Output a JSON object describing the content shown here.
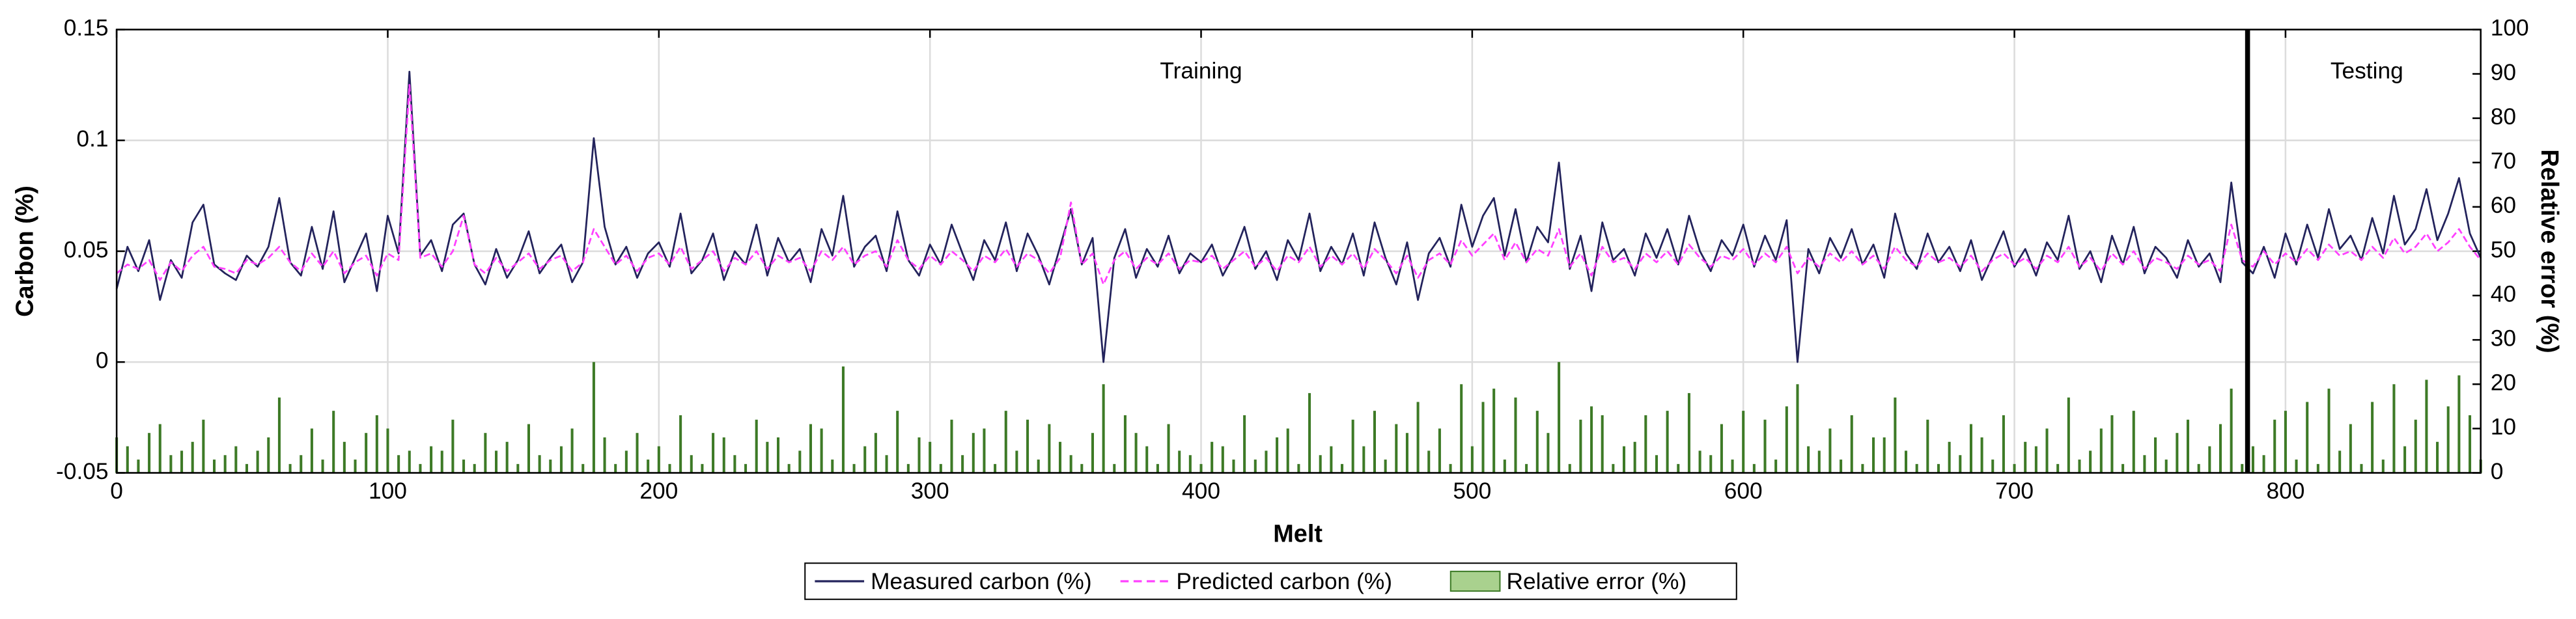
{
  "chart_data": {
    "type": "line",
    "xlabel": "Melt",
    "ylabel": "Carbon (%)",
    "y2label": "Relative error (%)",
    "x": [
      0,
      4,
      8,
      12,
      16,
      20,
      24,
      28,
      32,
      36,
      40,
      44,
      48,
      52,
      56,
      60,
      64,
      68,
      72,
      76,
      80,
      84,
      88,
      92,
      96,
      100,
      104,
      108,
      112,
      116,
      120,
      124,
      128,
      132,
      136,
      140,
      144,
      148,
      152,
      156,
      160,
      164,
      168,
      172,
      176,
      180,
      184,
      188,
      192,
      196,
      200,
      204,
      208,
      212,
      216,
      220,
      224,
      228,
      232,
      236,
      240,
      244,
      248,
      252,
      256,
      260,
      264,
      268,
      272,
      276,
      280,
      284,
      288,
      292,
      296,
      300,
      304,
      308,
      312,
      316,
      320,
      324,
      328,
      332,
      336,
      340,
      344,
      348,
      352,
      356,
      360,
      364,
      368,
      372,
      376,
      380,
      384,
      388,
      392,
      396,
      400,
      404,
      408,
      412,
      416,
      420,
      424,
      428,
      432,
      436,
      440,
      444,
      448,
      452,
      456,
      460,
      464,
      468,
      472,
      476,
      480,
      484,
      488,
      492,
      496,
      500,
      504,
      508,
      512,
      516,
      520,
      524,
      528,
      532,
      536,
      540,
      544,
      548,
      552,
      556,
      560,
      564,
      568,
      572,
      576,
      580,
      584,
      588,
      592,
      596,
      600,
      604,
      608,
      612,
      616,
      620,
      624,
      628,
      632,
      636,
      640,
      644,
      648,
      652,
      656,
      660,
      664,
      668,
      672,
      676,
      680,
      684,
      688,
      692,
      696,
      700,
      704,
      708,
      712,
      716,
      720,
      724,
      728,
      732,
      736,
      740,
      744,
      748,
      752,
      756,
      760,
      764,
      768,
      772,
      776,
      780,
      784,
      788,
      792,
      796,
      800,
      804,
      808,
      812,
      816,
      820,
      824,
      828,
      832,
      836,
      840,
      844,
      848,
      852,
      856,
      860,
      864,
      868,
      872
    ],
    "series": [
      {
        "name": "Measured carbon (%)",
        "color": "#23235c",
        "style": "solid",
        "values": [
          0.033,
          0.052,
          0.041,
          0.055,
          0.028,
          0.046,
          0.038,
          0.063,
          0.071,
          0.044,
          0.04,
          0.037,
          0.048,
          0.043,
          0.052,
          0.074,
          0.045,
          0.039,
          0.061,
          0.042,
          0.068,
          0.036,
          0.047,
          0.058,
          0.032,
          0.066,
          0.049,
          0.131,
          0.048,
          0.055,
          0.041,
          0.062,
          0.067,
          0.044,
          0.035,
          0.051,
          0.038,
          0.046,
          0.059,
          0.04,
          0.047,
          0.053,
          0.036,
          0.045,
          0.101,
          0.061,
          0.044,
          0.052,
          0.038,
          0.049,
          0.054,
          0.043,
          0.067,
          0.04,
          0.046,
          0.058,
          0.037,
          0.05,
          0.044,
          0.062,
          0.039,
          0.056,
          0.045,
          0.051,
          0.036,
          0.06,
          0.048,
          0.075,
          0.043,
          0.052,
          0.057,
          0.041,
          0.068,
          0.046,
          0.039,
          0.053,
          0.044,
          0.062,
          0.049,
          0.037,
          0.055,
          0.046,
          0.063,
          0.041,
          0.058,
          0.048,
          0.035,
          0.052,
          0.069,
          0.044,
          0.056,
          0.0,
          0.047,
          0.06,
          0.038,
          0.051,
          0.043,
          0.057,
          0.04,
          0.049,
          0.045,
          0.053,
          0.039,
          0.048,
          0.061,
          0.042,
          0.05,
          0.037,
          0.055,
          0.046,
          0.067,
          0.041,
          0.052,
          0.044,
          0.058,
          0.039,
          0.063,
          0.047,
          0.035,
          0.054,
          0.028,
          0.049,
          0.056,
          0.043,
          0.071,
          0.052,
          0.066,
          0.074,
          0.048,
          0.069,
          0.045,
          0.061,
          0.054,
          0.09,
          0.042,
          0.057,
          0.032,
          0.063,
          0.046,
          0.051,
          0.039,
          0.058,
          0.047,
          0.06,
          0.044,
          0.066,
          0.05,
          0.041,
          0.055,
          0.048,
          0.062,
          0.043,
          0.057,
          0.046,
          0.064,
          0.0,
          0.051,
          0.04,
          0.056,
          0.047,
          0.06,
          0.044,
          0.053,
          0.038,
          0.067,
          0.049,
          0.042,
          0.058,
          0.045,
          0.052,
          0.041,
          0.055,
          0.037,
          0.048,
          0.059,
          0.043,
          0.051,
          0.039,
          0.054,
          0.046,
          0.066,
          0.042,
          0.05,
          0.036,
          0.057,
          0.044,
          0.061,
          0.04,
          0.052,
          0.047,
          0.038,
          0.055,
          0.043,
          0.049,
          0.036,
          0.081,
          0.045,
          0.04,
          0.052,
          0.038,
          0.058,
          0.044,
          0.062,
          0.047,
          0.069,
          0.051,
          0.057,
          0.046,
          0.065,
          0.049,
          0.075,
          0.053,
          0.06,
          0.078,
          0.055,
          0.067,
          0.083,
          0.058,
          0.047
        ]
      },
      {
        "name": "Predicted carbon (%)",
        "color": "#ff40ff",
        "style": "dashed",
        "values": [
          0.04,
          0.044,
          0.042,
          0.046,
          0.037,
          0.045,
          0.041,
          0.048,
          0.052,
          0.043,
          0.042,
          0.04,
          0.046,
          0.044,
          0.047,
          0.052,
          0.045,
          0.041,
          0.049,
          0.043,
          0.05,
          0.04,
          0.045,
          0.048,
          0.039,
          0.049,
          0.046,
          0.125,
          0.047,
          0.049,
          0.043,
          0.05,
          0.066,
          0.044,
          0.04,
          0.047,
          0.041,
          0.045,
          0.049,
          0.042,
          0.046,
          0.048,
          0.041,
          0.045,
          0.06,
          0.052,
          0.044,
          0.048,
          0.041,
          0.047,
          0.049,
          0.044,
          0.052,
          0.042,
          0.046,
          0.05,
          0.041,
          0.047,
          0.044,
          0.05,
          0.042,
          0.048,
          0.045,
          0.047,
          0.041,
          0.05,
          0.046,
          0.052,
          0.044,
          0.048,
          0.05,
          0.043,
          0.055,
          0.046,
          0.042,
          0.048,
          0.044,
          0.05,
          0.046,
          0.041,
          0.048,
          0.045,
          0.051,
          0.043,
          0.049,
          0.046,
          0.04,
          0.047,
          0.072,
          0.044,
          0.049,
          0.035,
          0.046,
          0.05,
          0.042,
          0.047,
          0.044,
          0.049,
          0.042,
          0.046,
          0.045,
          0.048,
          0.042,
          0.046,
          0.05,
          0.043,
          0.047,
          0.041,
          0.048,
          0.045,
          0.052,
          0.043,
          0.048,
          0.044,
          0.049,
          0.042,
          0.051,
          0.046,
          0.04,
          0.048,
          0.038,
          0.046,
          0.049,
          0.044,
          0.055,
          0.048,
          0.053,
          0.058,
          0.046,
          0.054,
          0.045,
          0.051,
          0.048,
          0.06,
          0.043,
          0.049,
          0.039,
          0.052,
          0.045,
          0.047,
          0.042,
          0.049,
          0.045,
          0.05,
          0.044,
          0.053,
          0.047,
          0.043,
          0.048,
          0.046,
          0.051,
          0.044,
          0.049,
          0.045,
          0.052,
          0.04,
          0.047,
          0.043,
          0.049,
          0.045,
          0.05,
          0.044,
          0.048,
          0.042,
          0.052,
          0.046,
          0.043,
          0.049,
          0.045,
          0.047,
          0.043,
          0.048,
          0.041,
          0.046,
          0.049,
          0.044,
          0.047,
          0.042,
          0.048,
          0.045,
          0.052,
          0.043,
          0.047,
          0.041,
          0.049,
          0.044,
          0.05,
          0.042,
          0.047,
          0.045,
          0.042,
          0.048,
          0.044,
          0.046,
          0.041,
          0.062,
          0.046,
          0.043,
          0.05,
          0.044,
          0.049,
          0.045,
          0.051,
          0.046,
          0.053,
          0.048,
          0.05,
          0.046,
          0.052,
          0.047,
          0.056,
          0.049,
          0.052,
          0.058,
          0.05,
          0.054,
          0.06,
          0.052,
          0.046
        ]
      },
      {
        "name": "Relative error (%)",
        "type": "bar",
        "axis": "y2",
        "color": "#3d7a26",
        "legend_color": "#a9d18e",
        "values": [
          8,
          6,
          3,
          9,
          11,
          4,
          5,
          7,
          12,
          3,
          4,
          6,
          2,
          5,
          8,
          17,
          2,
          4,
          10,
          3,
          14,
          7,
          3,
          9,
          13,
          10,
          4,
          5,
          2,
          6,
          5,
          12,
          3,
          2,
          9,
          5,
          7,
          2,
          11,
          4,
          3,
          6,
          10,
          2,
          25,
          8,
          2,
          5,
          9,
          3,
          6,
          2,
          13,
          4,
          2,
          9,
          8,
          4,
          2,
          12,
          7,
          8,
          2,
          5,
          11,
          10,
          3,
          24,
          2,
          6,
          9,
          4,
          14,
          2,
          8,
          7,
          2,
          12,
          4,
          9,
          10,
          2,
          14,
          5,
          12,
          3,
          11,
          7,
          4,
          2,
          9,
          20,
          2,
          13,
          9,
          6,
          2,
          11,
          5,
          4,
          2,
          7,
          6,
          3,
          13,
          3,
          5,
          8,
          10,
          2,
          18,
          4,
          6,
          2,
          12,
          6,
          14,
          3,
          11,
          9,
          16,
          5,
          10,
          2,
          20,
          6,
          16,
          19,
          3,
          17,
          2,
          14,
          9,
          25,
          2,
          12,
          15,
          13,
          2,
          6,
          7,
          13,
          4,
          14,
          2,
          18,
          5,
          4,
          11,
          3,
          14,
          2,
          12,
          3,
          15,
          20,
          6,
          5,
          10,
          3,
          13,
          2,
          8,
          8,
          17,
          5,
          2,
          12,
          2,
          7,
          4,
          11,
          8,
          3,
          13,
          2,
          7,
          6,
          10,
          2,
          17,
          3,
          5,
          10,
          13,
          2,
          14,
          4,
          8,
          3,
          9,
          12,
          2,
          6,
          11,
          19,
          2,
          6,
          4,
          12,
          14,
          3,
          16,
          2,
          19,
          5,
          11,
          2,
          16,
          3,
          20,
          6,
          12,
          21,
          7,
          15,
          22,
          13,
          3
        ]
      }
    ],
    "xlim": [
      0,
      872
    ],
    "xticks": [
      0,
      100,
      200,
      300,
      400,
      500,
      600,
      700,
      800
    ],
    "ylim": [
      -0.05,
      0.15
    ],
    "yticks": [
      -0.05,
      0,
      0.05,
      0.1,
      0.15
    ],
    "y2lim": [
      0,
      100
    ],
    "y2ticks": [
      0,
      10,
      20,
      30,
      40,
      50,
      60,
      70,
      80,
      90,
      100
    ],
    "grid": true,
    "legend": "bottom",
    "split_x": 786,
    "annotations": [
      {
        "text": "Training",
        "x": 400
      },
      {
        "text": "Testing",
        "x": 830
      }
    ]
  }
}
